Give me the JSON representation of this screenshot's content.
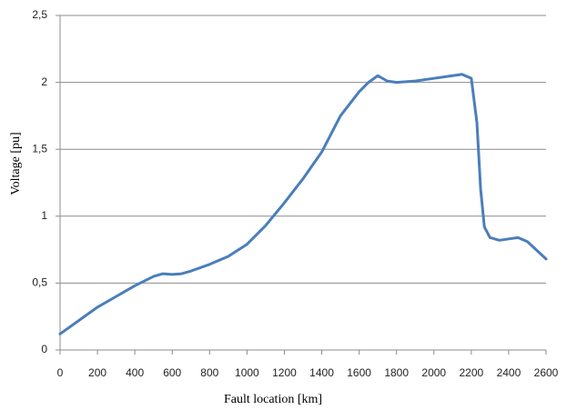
{
  "chart_data": {
    "type": "line",
    "x_label": "Fault location [km]",
    "y_label": "Voltage [pu]",
    "xlim": [
      0,
      2600
    ],
    "xticks": [
      0,
      200,
      400,
      600,
      800,
      1000,
      1200,
      1400,
      1600,
      1800,
      2000,
      2200,
      2400,
      2600
    ],
    "ylim": [
      0,
      2.5
    ],
    "yticks": [
      0,
      {
        "value": 0.5,
        "label": "0,5"
      },
      1,
      {
        "value": 1.5,
        "label": "1,5"
      },
      2,
      {
        "value": 2.5,
        "label": "2,5"
      }
    ],
    "grid": true,
    "series": [
      {
        "color": "#4a7ebb",
        "x": [
          0,
          100,
          200,
          300,
          400,
          500,
          550,
          600,
          650,
          700,
          800,
          900,
          1000,
          1100,
          1200,
          1300,
          1400,
          1500,
          1600,
          1650,
          1700,
          1750,
          1800,
          1900,
          2000,
          2100,
          2150,
          2200,
          2230,
          2250,
          2270,
          2300,
          2350,
          2400,
          2450,
          2500,
          2600
        ],
        "values": [
          0.12,
          0.22,
          0.32,
          0.4,
          0.48,
          0.55,
          0.57,
          0.565,
          0.57,
          0.59,
          0.64,
          0.7,
          0.79,
          0.93,
          1.1,
          1.28,
          1.48,
          1.75,
          1.93,
          2.0,
          2.05,
          2.01,
          2.0,
          2.01,
          2.03,
          2.05,
          2.06,
          2.03,
          1.7,
          1.2,
          0.92,
          0.84,
          0.82,
          0.83,
          0.84,
          0.81,
          0.68
        ]
      }
    ]
  }
}
